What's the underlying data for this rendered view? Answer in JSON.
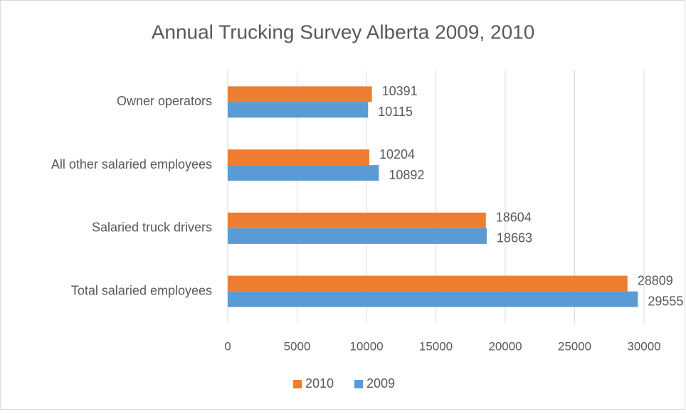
{
  "chart_data": {
    "type": "barh",
    "title": "Annual Trucking Survey Alberta 2009, 2010",
    "categories": [
      "Owner operators",
      "All other salaried employees",
      "Salaried truck drivers",
      "Total salaried employees"
    ],
    "series": [
      {
        "name": "2010",
        "color": "#ED7D31",
        "values": [
          10391,
          10204,
          18604,
          28809
        ]
      },
      {
        "name": "2009",
        "color": "#5B9BD5",
        "values": [
          10115,
          10892,
          18663,
          29555
        ]
      }
    ],
    "xlim": [
      0,
      30000
    ],
    "xticks": [
      0,
      5000,
      10000,
      15000,
      20000,
      25000,
      30000
    ],
    "grid": true,
    "legend": "bottom"
  }
}
